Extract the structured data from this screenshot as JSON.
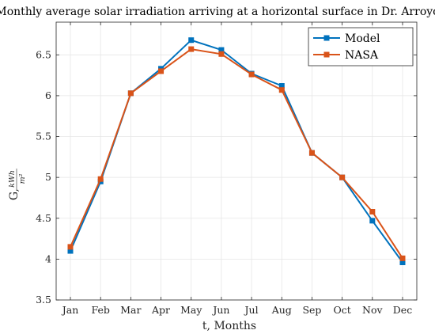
{
  "chart_data": {
    "type": "line",
    "title": "Monthly average solar irradiation arriving at a horizontal surface in Dr. Arroyo",
    "xlabel": "t, Months",
    "ylabel_prefix": "G,",
    "ylabel_numerator": "kWh",
    "ylabel_denominator": "m²",
    "categories": [
      "Jan",
      "Feb",
      "Mar",
      "Apr",
      "May",
      "Jun",
      "Jul",
      "Aug",
      "Sep",
      "Oct",
      "Nov",
      "Dec"
    ],
    "ylim": [
      3.5,
      6.9
    ],
    "yticks": [
      "3.5",
      "4",
      "4.5",
      "5",
      "5.5",
      "6",
      "6.5"
    ],
    "grid": true,
    "legend_position": "top-right",
    "series": [
      {
        "name": "Model",
        "color": "#0072BD",
        "marker": "square",
        "values": [
          4.1,
          4.95,
          6.03,
          6.33,
          6.68,
          6.56,
          6.27,
          6.12,
          5.3,
          5.0,
          4.47,
          3.96
        ]
      },
      {
        "name": "NASA",
        "color": "#D95319",
        "marker": "square",
        "values": [
          4.15,
          4.98,
          6.03,
          6.3,
          6.57,
          6.51,
          6.26,
          6.07,
          5.3,
          5.0,
          4.58,
          4.01
        ]
      }
    ]
  }
}
